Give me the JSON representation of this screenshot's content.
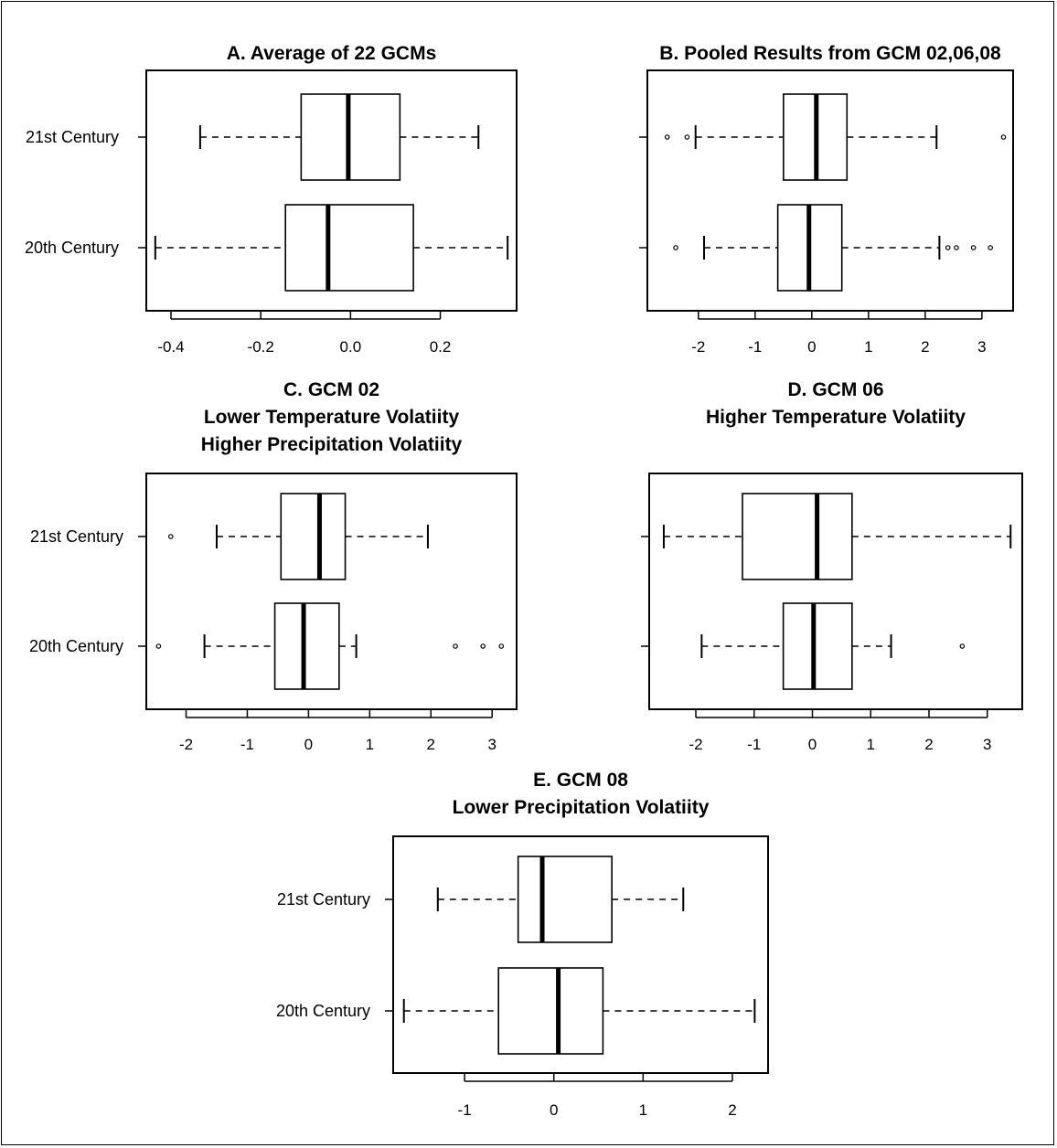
{
  "charts": [
    {
      "type": "boxplot",
      "orientation": "horizontal",
      "title_lines": [
        "A. Average of 22 GCMs"
      ],
      "categories": [
        "21st Century",
        "20th Century"
      ],
      "xticks": [
        -0.4,
        -0.2,
        0.0,
        0.2
      ],
      "xtick_labels": [
        "-0.4",
        "-0.2",
        "0.0",
        "0.2"
      ],
      "xlim": [
        -0.455,
        0.37
      ],
      "boxes": [
        {
          "name": "21st Century",
          "whisker_low": -0.335,
          "q1": -0.11,
          "median": -0.005,
          "q3": 0.11,
          "whisker_high": 0.285,
          "outliers": []
        },
        {
          "name": "20th Century",
          "whisker_low": -0.435,
          "q1": -0.145,
          "median": -0.05,
          "q3": 0.14,
          "whisker_high": 0.35,
          "outliers": []
        }
      ]
    },
    {
      "type": "boxplot",
      "orientation": "horizontal",
      "title_lines": [
        "B. Pooled Results from GCM 02,06,08"
      ],
      "categories": [
        "",
        ""
      ],
      "xticks": [
        -2,
        -1,
        0,
        1,
        2,
        3
      ],
      "xtick_labels": [
        "-2",
        "-1",
        "0",
        "1",
        "2",
        "3"
      ],
      "xlim": [
        -2.9,
        3.55
      ],
      "boxes": [
        {
          "name": "21st Century",
          "whisker_low": -2.05,
          "q1": -0.5,
          "median": 0.08,
          "q3": 0.62,
          "whisker_high": 2.2,
          "outliers": [
            -2.55,
            -2.2,
            3.38
          ]
        },
        {
          "name": "20th Century",
          "whisker_low": -1.9,
          "q1": -0.6,
          "median": -0.05,
          "q3": 0.53,
          "whisker_high": 2.25,
          "outliers": [
            -2.4,
            2.4,
            2.55,
            2.85,
            3.15
          ]
        }
      ]
    },
    {
      "type": "boxplot",
      "orientation": "horizontal",
      "title_lines": [
        "C. GCM 02",
        "Lower Temperature Volatiity",
        "Higher Precipitation Volatiity"
      ],
      "categories": [
        "21st Century",
        "20th Century"
      ],
      "xticks": [
        -2,
        -1,
        0,
        1,
        2,
        3
      ],
      "xtick_labels": [
        "-2",
        "-1",
        "0",
        "1",
        "2",
        "3"
      ],
      "xlim": [
        -2.65,
        3.4
      ],
      "boxes": [
        {
          "name": "21st Century",
          "whisker_low": -1.5,
          "q1": -0.45,
          "median": 0.18,
          "q3": 0.6,
          "whisker_high": 1.95,
          "outliers": [
            -2.25
          ]
        },
        {
          "name": "20th Century",
          "whisker_low": -1.7,
          "q1": -0.55,
          "median": -0.08,
          "q3": 0.5,
          "whisker_high": 0.78,
          "outliers": [
            -2.45,
            2.4,
            2.85,
            3.15
          ]
        }
      ]
    },
    {
      "type": "boxplot",
      "orientation": "horizontal",
      "title_lines": [
        "D. GCM 06",
        "Higher Temperature Volatiity"
      ],
      "categories": [
        "",
        ""
      ],
      "xticks": [
        -2,
        -1,
        0,
        1,
        2,
        3
      ],
      "xtick_labels": [
        "-2",
        "-1",
        "0",
        "1",
        "2",
        "3"
      ],
      "xlim": [
        -2.8,
        3.6
      ],
      "boxes": [
        {
          "name": "21st Century",
          "whisker_low": -2.55,
          "q1": -1.2,
          "median": 0.08,
          "q3": 0.68,
          "whisker_high": 3.4,
          "outliers": []
        },
        {
          "name": "20th Century",
          "whisker_low": -1.9,
          "q1": -0.5,
          "median": 0.02,
          "q3": 0.68,
          "whisker_high": 1.35,
          "outliers": [
            2.57
          ]
        }
      ]
    },
    {
      "type": "boxplot",
      "orientation": "horizontal",
      "title_lines": [
        "E. GCM 08",
        "Lower Precipitation Volatiity"
      ],
      "categories": [
        "21st Century",
        "20th Century"
      ],
      "xticks": [
        -1,
        0,
        1,
        2
      ],
      "xtick_labels": [
        "-1",
        "0",
        "1",
        "2"
      ],
      "xlim": [
        -1.8,
        2.4
      ],
      "boxes": [
        {
          "name": "21st Century",
          "whisker_low": -1.3,
          "q1": -0.4,
          "median": -0.13,
          "q3": 0.65,
          "whisker_high": 1.45,
          "outliers": []
        },
        {
          "name": "20th Century",
          "whisker_low": -1.68,
          "q1": -0.62,
          "median": 0.05,
          "q3": 0.55,
          "whisker_high": 2.25,
          "outliers": []
        }
      ]
    }
  ],
  "chart_data": [
    {
      "type": "boxplot",
      "title": "A. Average of 22 GCMs",
      "categories": [
        "21st Century",
        "20th Century"
      ],
      "series": [
        {
          "name": "21st Century",
          "values": [
            -0.335,
            -0.11,
            -0.005,
            0.11,
            0.285
          ],
          "outliers": []
        },
        {
          "name": "20th Century",
          "values": [
            -0.435,
            -0.145,
            -0.05,
            0.14,
            0.35
          ],
          "outliers": []
        }
      ],
      "xlim": [
        -0.455,
        0.37
      ],
      "grid": false
    },
    {
      "type": "boxplot",
      "title": "B. Pooled Results from GCM 02,06,08",
      "categories": [
        "21st Century",
        "20th Century"
      ],
      "series": [
        {
          "name": "21st Century",
          "values": [
            -2.05,
            -0.5,
            0.08,
            0.62,
            2.2
          ],
          "outliers": [
            -2.55,
            -2.2,
            3.38
          ]
        },
        {
          "name": "20th Century",
          "values": [
            -1.9,
            -0.6,
            -0.05,
            0.53,
            2.25
          ],
          "outliers": [
            -2.4,
            2.4,
            2.55,
            2.85,
            3.15
          ]
        }
      ],
      "xlim": [
        -2.9,
        3.55
      ],
      "grid": false
    },
    {
      "type": "boxplot",
      "title": "C. GCM 02 Lower Temperature Volatiity Higher Precipitation Volatiity",
      "categories": [
        "21st Century",
        "20th Century"
      ],
      "series": [
        {
          "name": "21st Century",
          "values": [
            -1.5,
            -0.45,
            0.18,
            0.6,
            1.95
          ],
          "outliers": [
            -2.25
          ]
        },
        {
          "name": "20th Century",
          "values": [
            -1.7,
            -0.55,
            -0.08,
            0.5,
            0.78
          ],
          "outliers": [
            -2.45,
            2.4,
            2.85,
            3.15
          ]
        }
      ],
      "xlim": [
        -2.65,
        3.4
      ],
      "grid": false
    },
    {
      "type": "boxplot",
      "title": "D. GCM 06 Higher Temperature Volatiity",
      "categories": [
        "21st Century",
        "20th Century"
      ],
      "series": [
        {
          "name": "21st Century",
          "values": [
            -2.55,
            -1.2,
            0.08,
            0.68,
            3.4
          ],
          "outliers": []
        },
        {
          "name": "20th Century",
          "values": [
            -1.9,
            -0.5,
            0.02,
            0.68,
            1.35
          ],
          "outliers": [
            2.57
          ]
        }
      ],
      "xlim": [
        -2.8,
        3.6
      ],
      "grid": false
    },
    {
      "type": "boxplot",
      "title": "E. GCM 08 Lower Precipitation Volatiity",
      "categories": [
        "21st Century",
        "20th Century"
      ],
      "series": [
        {
          "name": "21st Century",
          "values": [
            -1.3,
            -0.4,
            -0.13,
            0.65,
            1.45
          ],
          "outliers": []
        },
        {
          "name": "20th Century",
          "values": [
            -1.68,
            -0.62,
            0.05,
            0.55,
            2.25
          ],
          "outliers": []
        }
      ],
      "xlim": [
        -1.8,
        2.4
      ],
      "grid": false
    }
  ]
}
